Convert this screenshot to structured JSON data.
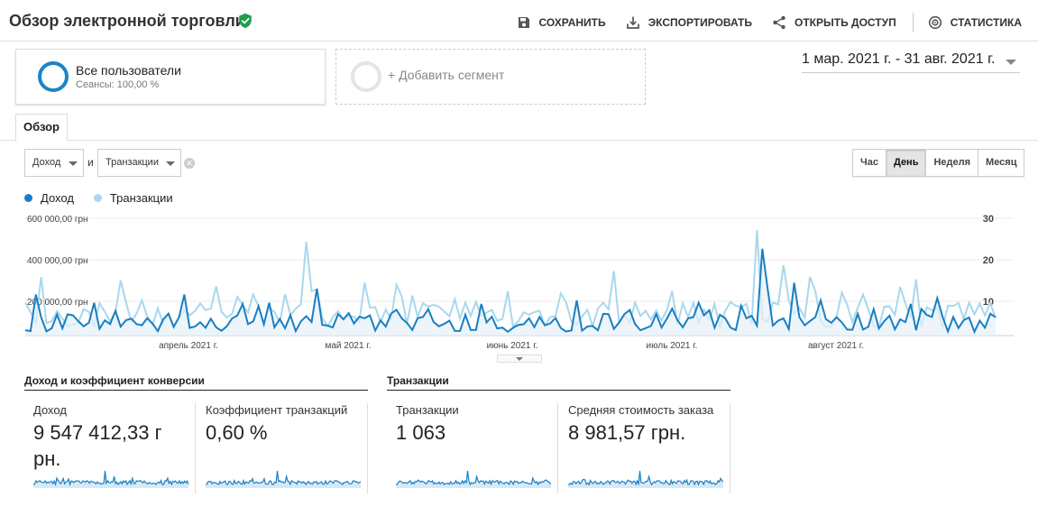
{
  "header": {
    "title": "Обзор электронной торговли",
    "actions": {
      "save": "СОХРАНИТЬ",
      "export": "ЭКСПОРТИРОВАТЬ",
      "share": "ОТКРЫТЬ ДОСТУП",
      "insights": "СТАТИСТИКА"
    }
  },
  "segments": {
    "active": {
      "title": "Все пользователи",
      "subtitle": "Сеансы: 100,00 %"
    },
    "add_label": "+ Добавить сегмент"
  },
  "date_range": "1 мар. 2021 г. - 31 авг. 2021 г.",
  "tabs": {
    "overview": "Обзор"
  },
  "metric_selectors": {
    "primary": "Доход",
    "connector": "и",
    "secondary": "Транзакции"
  },
  "granularity": {
    "options": [
      "Час",
      "День",
      "Неделя",
      "Месяц"
    ],
    "selected": "День"
  },
  "chart_data": {
    "type": "line",
    "series": [
      {
        "name": "Доход",
        "color": "#1a7fc1"
      },
      {
        "name": "Транзакции",
        "color": "#a8d8ee"
      }
    ],
    "y_left_ticks": [
      "600 000,00 грн",
      "400 000,00 грн",
      "200 000,00 грн"
    ],
    "y_right_ticks": [
      "30",
      "20",
      "10"
    ],
    "x_labels": [
      "апрель 2021 г.",
      "май 2021 г.",
      "июнь 2021 г.",
      "июль 2021 г.",
      "август 2021 г."
    ],
    "ylim_left": [
      0,
      600000
    ],
    "ylim_right": [
      0,
      30
    ],
    "x_range": [
      "2021-03-01",
      "2021-08-31"
    ]
  },
  "sections": {
    "revenue_header": "Доход и коэффициент конверсии",
    "transactions_header": "Транзакции"
  },
  "metrics": [
    {
      "label": "Доход",
      "value_line1": "9 547 412,33 г",
      "value_line2": "рн."
    },
    {
      "label": "Коэффициент транзакций",
      "value_line1": "0,60 %",
      "value_line2": ""
    },
    {
      "label": "Транзакции",
      "value_line1": "1 063",
      "value_line2": ""
    },
    {
      "label": "Средняя стоимость заказа",
      "value_line1": "8 981,57 грн.",
      "value_line2": ""
    }
  ]
}
